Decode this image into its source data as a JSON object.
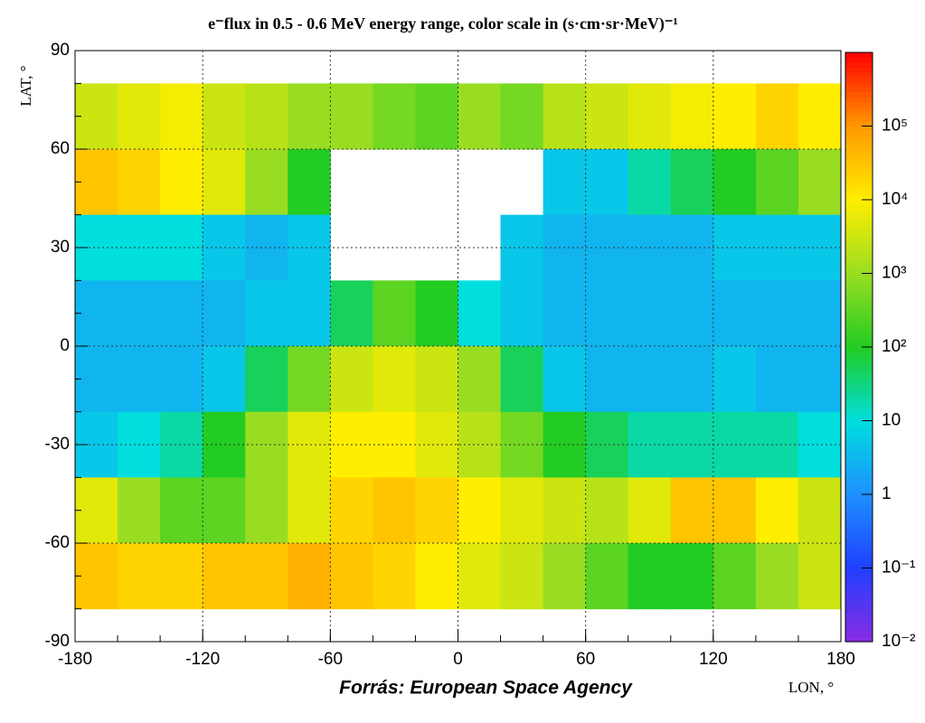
{
  "chart_data": {
    "type": "heatmap",
    "title": "e⁻flux in 0.5 - 0.6 MeV energy range, color scale in (s·cm·sr·MeV)⁻¹",
    "x_label": "LON, °",
    "y_label": "LAT, °",
    "source": "Forrás: European Space Agency",
    "x": [
      -170,
      -150,
      -130,
      -110,
      -90,
      -70,
      -50,
      -30,
      -10,
      10,
      30,
      50,
      70,
      90,
      110,
      130,
      150,
      170
    ],
    "y": [
      70,
      50,
      30,
      10,
      -10,
      -30,
      -50,
      -70
    ],
    "z": [
      [
        3000,
        5000,
        8000,
        3000,
        2000,
        1000,
        1000,
        500,
        300,
        1000,
        500,
        2000,
        3000,
        5000,
        8000,
        10000,
        20000,
        10000
      ],
      [
        30000,
        20000,
        10000,
        5000,
        1000,
        100,
        null,
        null,
        null,
        null,
        null,
        5,
        5,
        20,
        50,
        100,
        300,
        1000
      ],
      [
        10,
        10,
        10,
        5,
        3,
        5,
        null,
        null,
        null,
        null,
        5,
        3,
        3,
        3,
        3,
        5,
        5,
        5
      ],
      [
        3,
        3,
        3,
        3,
        5,
        5,
        50,
        300,
        100,
        10,
        5,
        3,
        3,
        3,
        3,
        3,
        3,
        3
      ],
      [
        3,
        3,
        3,
        5,
        50,
        500,
        3000,
        5000,
        3000,
        1000,
        50,
        5,
        3,
        3,
        3,
        5,
        3,
        3
      ],
      [
        5,
        10,
        20,
        100,
        1000,
        5000,
        10000,
        10000,
        5000,
        2000,
        500,
        100,
        50,
        20,
        20,
        20,
        20,
        10
      ],
      [
        5000,
        1000,
        300,
        300,
        1000,
        5000,
        20000,
        30000,
        20000,
        10000,
        5000,
        3000,
        2000,
        5000,
        30000,
        30000,
        10000,
        3000
      ],
      [
        30000,
        20000,
        20000,
        30000,
        30000,
        50000,
        30000,
        20000,
        10000,
        5000,
        3000,
        1000,
        300,
        100,
        100,
        300,
        1000,
        3000
      ]
    ],
    "xlim": [
      -180,
      180
    ],
    "ylim": [
      -90,
      90
    ],
    "xticks": [
      -180,
      -120,
      -60,
      0,
      60,
      120,
      180
    ],
    "yticks": [
      -90,
      -60,
      -30,
      0,
      30,
      60,
      90
    ],
    "zlim": [
      0.01,
      1000000
    ],
    "zlog": true,
    "zticks": [
      {
        "value": 0.01,
        "label": "10⁻²"
      },
      {
        "value": 0.1,
        "label": "10⁻¹"
      },
      1,
      10,
      {
        "value": 100,
        "label": "10²"
      },
      {
        "value": 1000,
        "label": "10³"
      },
      {
        "value": 10000,
        "label": "10⁴"
      },
      {
        "value": 100000,
        "label": "10⁵"
      }
    ],
    "colormap": [
      "#8a2be2",
      "#2040ff",
      "#1e90ff",
      "#00dede",
      "#22cc22",
      "#99dd22",
      "#ffee00",
      "#ff9900",
      "#ff0000"
    ],
    "grid": true
  }
}
